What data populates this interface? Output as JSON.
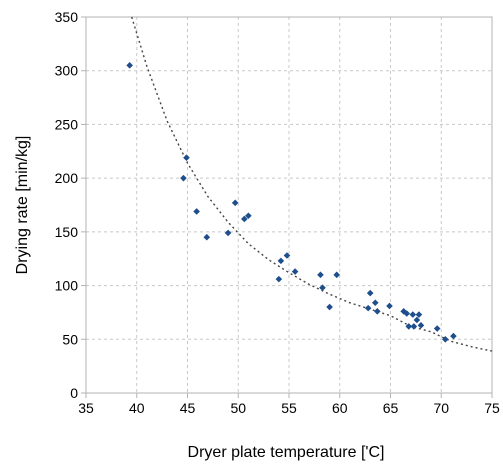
{
  "chart_data": {
    "type": "scatter",
    "xlabel": "Dryer plate temperature ['C]",
    "ylabel": "Drying rate [min/kg]",
    "xlim": [
      35,
      75
    ],
    "ylim": [
      0,
      350
    ],
    "x_ticks": [
      "35",
      "40",
      "45",
      "50",
      "55",
      "60",
      "65",
      "70",
      "75"
    ],
    "y_ticks": [
      "0",
      "50",
      "100",
      "150",
      "200",
      "250",
      "300",
      "350"
    ],
    "grid": true,
    "legend": "none",
    "marker_color": "#1f4e8c",
    "trendline": {
      "style": "dotted",
      "color": "#444444",
      "x": [
        39.5,
        41,
        43,
        45,
        47,
        49,
        51,
        53,
        55,
        57,
        59,
        61,
        63,
        65,
        67,
        69,
        71,
        73,
        75
      ],
      "y": [
        350,
        304,
        253,
        214,
        183,
        159,
        139,
        124,
        112,
        101,
        92,
        84,
        78,
        72,
        62,
        57,
        48,
        43,
        39
      ]
    },
    "points": [
      {
        "x": 39.3,
        "y": 305
      },
      {
        "x": 44.6,
        "y": 200
      },
      {
        "x": 44.9,
        "y": 219
      },
      {
        "x": 45.9,
        "y": 169
      },
      {
        "x": 46.9,
        "y": 145
      },
      {
        "x": 49.0,
        "y": 149
      },
      {
        "x": 49.7,
        "y": 177
      },
      {
        "x": 50.6,
        "y": 162
      },
      {
        "x": 51.0,
        "y": 165
      },
      {
        "x": 54.0,
        "y": 106
      },
      {
        "x": 54.2,
        "y": 123
      },
      {
        "x": 54.8,
        "y": 128
      },
      {
        "x": 55.6,
        "y": 113
      },
      {
        "x": 58.1,
        "y": 110
      },
      {
        "x": 58.3,
        "y": 98
      },
      {
        "x": 59.0,
        "y": 80
      },
      {
        "x": 59.7,
        "y": 110
      },
      {
        "x": 62.8,
        "y": 79
      },
      {
        "x": 63.0,
        "y": 93
      },
      {
        "x": 63.5,
        "y": 84
      },
      {
        "x": 63.7,
        "y": 76
      },
      {
        "x": 64.9,
        "y": 81
      },
      {
        "x": 66.3,
        "y": 76
      },
      {
        "x": 66.6,
        "y": 74
      },
      {
        "x": 66.8,
        "y": 62
      },
      {
        "x": 67.2,
        "y": 73
      },
      {
        "x": 67.3,
        "y": 62
      },
      {
        "x": 67.6,
        "y": 68
      },
      {
        "x": 67.8,
        "y": 73
      },
      {
        "x": 68.0,
        "y": 63
      },
      {
        "x": 69.6,
        "y": 60
      },
      {
        "x": 70.4,
        "y": 50
      },
      {
        "x": 71.2,
        "y": 53
      }
    ]
  }
}
